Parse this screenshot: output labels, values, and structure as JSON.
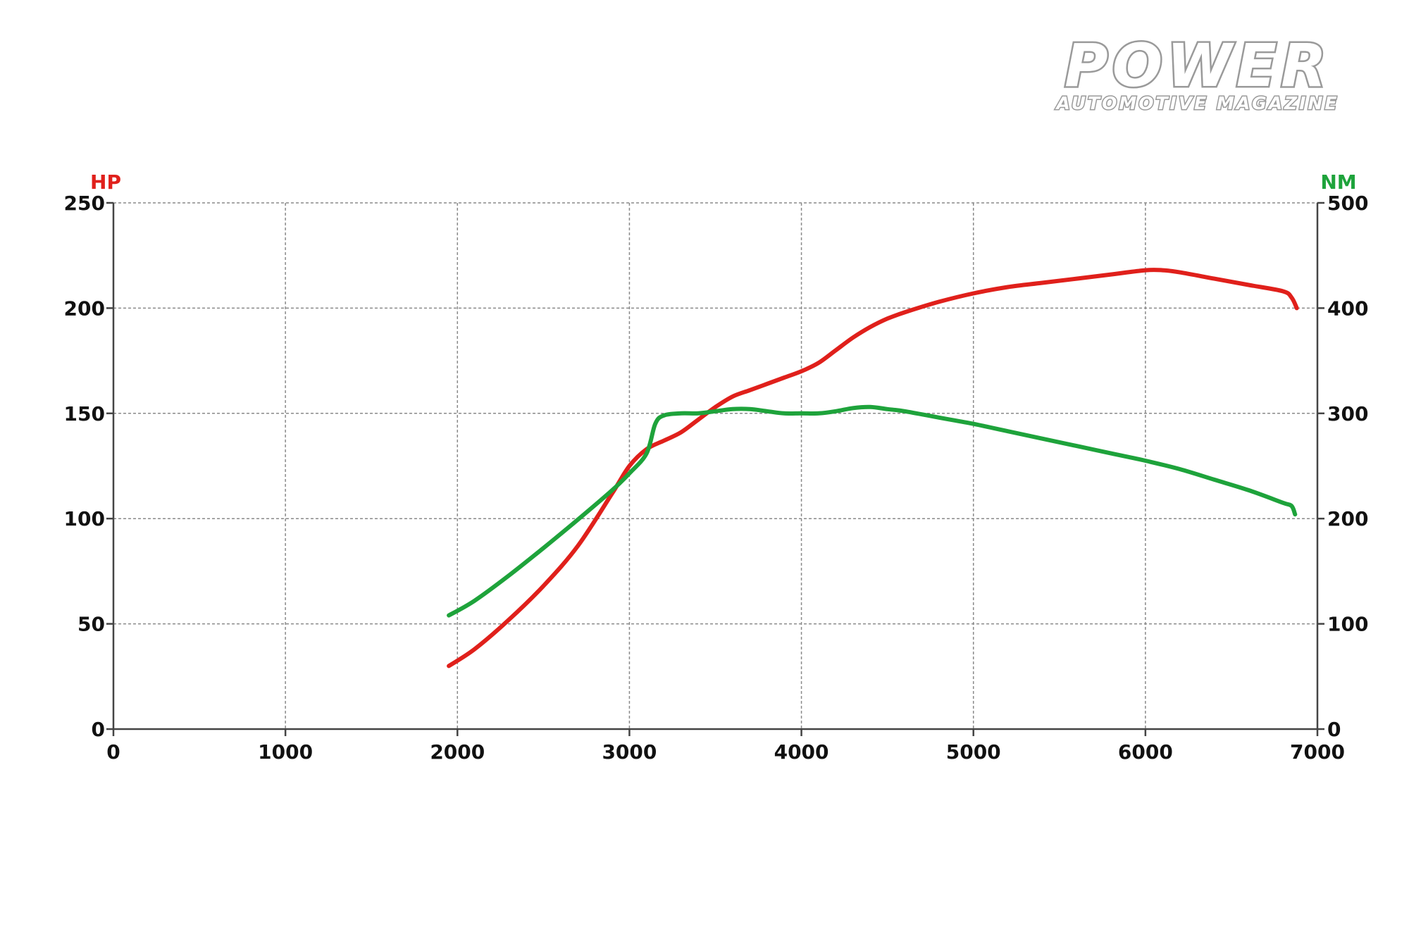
{
  "logo": {
    "line1": "POWER",
    "line2": "AUTOMOTIVE MAGAZINE"
  },
  "colors": {
    "hp": "#e0201b",
    "nm": "#1ea33b",
    "axis": "#444444",
    "grid": "#8a8a8a"
  },
  "chart_data": {
    "type": "line",
    "title": "",
    "xlabel": "",
    "x_ticks": [
      "0",
      "1000",
      "2000",
      "3000",
      "4000",
      "5000",
      "6000",
      "7000"
    ],
    "xlim": [
      0,
      7000
    ],
    "y_left": {
      "label": "HP",
      "ticks": [
        "0",
        "50",
        "100",
        "150",
        "200",
        "250"
      ],
      "ylim": [
        0,
        250
      ]
    },
    "y_right": {
      "label": "NM",
      "ticks": [
        "0",
        "100",
        "200",
        "300",
        "400",
        "500"
      ],
      "ylim": [
        0,
        500
      ]
    },
    "grid": true,
    "series": [
      {
        "name": "HP",
        "axis": "left",
        "color": "#e0201b",
        "points": [
          [
            1950,
            30
          ],
          [
            2100,
            38
          ],
          [
            2300,
            52
          ],
          [
            2500,
            68
          ],
          [
            2700,
            87
          ],
          [
            2900,
            112
          ],
          [
            3000,
            125
          ],
          [
            3100,
            133
          ],
          [
            3200,
            137
          ],
          [
            3300,
            141
          ],
          [
            3400,
            147
          ],
          [
            3500,
            153
          ],
          [
            3600,
            158
          ],
          [
            3700,
            161
          ],
          [
            3800,
            164
          ],
          [
            3900,
            167
          ],
          [
            4000,
            170
          ],
          [
            4100,
            174
          ],
          [
            4200,
            180
          ],
          [
            4300,
            186
          ],
          [
            4400,
            191
          ],
          [
            4500,
            195
          ],
          [
            4600,
            198
          ],
          [
            4800,
            203
          ],
          [
            5000,
            207
          ],
          [
            5200,
            210
          ],
          [
            5400,
            212
          ],
          [
            5600,
            214
          ],
          [
            5800,
            216
          ],
          [
            6000,
            218
          ],
          [
            6100,
            218
          ],
          [
            6200,
            217
          ],
          [
            6400,
            214
          ],
          [
            6600,
            211
          ],
          [
            6800,
            208
          ],
          [
            6850,
            205
          ],
          [
            6880,
            200
          ]
        ]
      },
      {
        "name": "NM",
        "axis": "right",
        "color": "#1ea33b",
        "points": [
          [
            1950,
            108
          ],
          [
            2100,
            122
          ],
          [
            2300,
            146
          ],
          [
            2500,
            172
          ],
          [
            2700,
            199
          ],
          [
            2900,
            227
          ],
          [
            3000,
            243
          ],
          [
            3100,
            262
          ],
          [
            3150,
            290
          ],
          [
            3200,
            298
          ],
          [
            3300,
            300
          ],
          [
            3400,
            300
          ],
          [
            3500,
            302
          ],
          [
            3600,
            304
          ],
          [
            3700,
            304
          ],
          [
            3800,
            302
          ],
          [
            3900,
            300
          ],
          [
            4000,
            300
          ],
          [
            4100,
            300
          ],
          [
            4200,
            302
          ],
          [
            4300,
            305
          ],
          [
            4400,
            306
          ],
          [
            4500,
            304
          ],
          [
            4600,
            302
          ],
          [
            4800,
            296
          ],
          [
            5000,
            290
          ],
          [
            5200,
            283
          ],
          [
            5400,
            276
          ],
          [
            5600,
            269
          ],
          [
            5800,
            262
          ],
          [
            6000,
            255
          ],
          [
            6200,
            247
          ],
          [
            6400,
            237
          ],
          [
            6600,
            227
          ],
          [
            6800,
            215
          ],
          [
            6850,
            212
          ],
          [
            6870,
            204
          ]
        ]
      }
    ]
  }
}
